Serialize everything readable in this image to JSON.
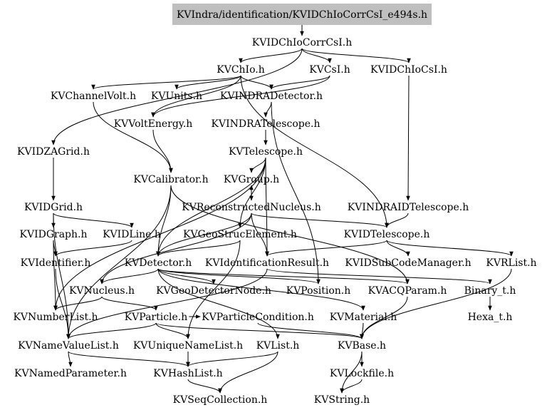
{
  "root": "KVIndra/identification/KVIDChIoCorrCsI_e494s.h",
  "nodes": [
    {
      "id": "root",
      "label": "KVIndra/identification/KVIDChIoCorrCsI_e494s.h"
    },
    {
      "id": "KVIDChIoCorrCsI",
      "label": "KVIDChIoCorrCsI.h"
    },
    {
      "id": "KVChIo",
      "label": "KVChIo.h"
    },
    {
      "id": "KVCsI",
      "label": "KVCsI.h"
    },
    {
      "id": "KVIDChIoCsI",
      "label": "KVIDChIoCsI.h"
    },
    {
      "id": "KVChannelVolt",
      "label": "KVChannelVolt.h"
    },
    {
      "id": "KVUnits",
      "label": "KVUnits.h"
    },
    {
      "id": "KVINDRADetector",
      "label": "KVINDRADetector.h"
    },
    {
      "id": "KVVoltEnergy",
      "label": "KVVoltEnergy.h"
    },
    {
      "id": "KVINDRATelescope",
      "label": "KVINDRATelescope.h"
    },
    {
      "id": "KVIDZAGrid",
      "label": "KVIDZAGrid.h"
    },
    {
      "id": "KVTelescope",
      "label": "KVTelescope.h"
    },
    {
      "id": "KVCalibrator",
      "label": "KVCalibrator.h"
    },
    {
      "id": "KVGroup",
      "label": "KVGroup.h"
    },
    {
      "id": "KVIDGrid",
      "label": "KVIDGrid.h"
    },
    {
      "id": "KVReconstructedNucleus",
      "label": "KVReconstructedNucleus.h"
    },
    {
      "id": "KVINDRAIDTelescope",
      "label": "KVINDRAIDTelescope.h"
    },
    {
      "id": "KVIDGraph",
      "label": "KVIDGraph.h"
    },
    {
      "id": "KVIDLine",
      "label": "KVIDLine.h"
    },
    {
      "id": "KVGeoStrucElement",
      "label": "KVGeoStrucElement.h"
    },
    {
      "id": "KVIDTelescope",
      "label": "KVIDTelescope.h"
    },
    {
      "id": "KVIdentifier",
      "label": "KVIdentifier.h"
    },
    {
      "id": "KVDetector",
      "label": "KVDetector.h"
    },
    {
      "id": "KVIdentificationResult",
      "label": "KVIdentificationResult.h"
    },
    {
      "id": "KVIDSubCodeManager",
      "label": "KVIDSubCodeManager.h"
    },
    {
      "id": "KVRList",
      "label": "KVRList.h"
    },
    {
      "id": "KVNucleus",
      "label": "KVNucleus.h"
    },
    {
      "id": "KVGeoDetectorNode",
      "label": "KVGeoDetectorNode.h"
    },
    {
      "id": "KVPosition",
      "label": "KVPosition.h"
    },
    {
      "id": "KVACQParam",
      "label": "KVACQParam.h"
    },
    {
      "id": "Binary_t",
      "label": "Binary_t.h"
    },
    {
      "id": "KVNumberList",
      "label": "KVNumberList.h"
    },
    {
      "id": "KVParticle",
      "label": "KVParticle.h"
    },
    {
      "id": "KVParticleCondition",
      "label": "KVParticleCondition.h"
    },
    {
      "id": "KVMaterial",
      "label": "KVMaterial.h"
    },
    {
      "id": "Hexa_t",
      "label": "Hexa_t.h"
    },
    {
      "id": "KVNameValueList",
      "label": "KVNameValueList.h"
    },
    {
      "id": "KVUniqueNameList",
      "label": "KVUniqueNameList.h"
    },
    {
      "id": "KVList",
      "label": "KVList.h"
    },
    {
      "id": "KVBase",
      "label": "KVBase.h"
    },
    {
      "id": "KVNamedParameter",
      "label": "KVNamedParameter.h"
    },
    {
      "id": "KVHashList",
      "label": "KVHashList.h"
    },
    {
      "id": "KVLockfile",
      "label": "KVLockfile.h"
    },
    {
      "id": "KVSeqCollection",
      "label": "KVSeqCollection.h"
    },
    {
      "id": "KVString",
      "label": "KVString.h"
    }
  ],
  "edges": [
    [
      "root",
      "KVIDChIoCorrCsI"
    ],
    [
      "KVIDChIoCorrCsI",
      "KVChIo"
    ],
    [
      "KVIDChIoCorrCsI",
      "KVCsI"
    ],
    [
      "KVIDChIoCorrCsI",
      "KVIDChIoCsI"
    ],
    [
      "KVIDChIoCorrCsI",
      "KVIDZAGrid"
    ],
    [
      "KVChIo",
      "KVChannelVolt"
    ],
    [
      "KVChIo",
      "KVUnits"
    ],
    [
      "KVChIo",
      "KVINDRADetector"
    ],
    [
      "KVChIo",
      "KVVoltEnergy"
    ],
    [
      "KVChIo",
      "KVIDTelescope"
    ],
    [
      "KVCsI",
      "KVINDRADetector"
    ],
    [
      "KVCsI",
      "KVVoltEnergy"
    ],
    [
      "KVIDChIoCsI",
      "KVINDRAIDTelescope"
    ],
    [
      "KVINDRADetector",
      "KVINDRATelescope"
    ],
    [
      "KVINDRADetector",
      "KVPosition"
    ],
    [
      "KVINDRATelescope",
      "KVTelescope"
    ],
    [
      "KVChannelVolt",
      "KVCalibrator"
    ],
    [
      "KVVoltEnergy",
      "KVCalibrator"
    ],
    [
      "KVTelescope",
      "KVGroup"
    ],
    [
      "KVTelescope",
      "KVNumberList"
    ],
    [
      "KVTelescope",
      "KVGeoStrucElement"
    ],
    [
      "KVTelescope",
      "KVIdentificationResult"
    ],
    [
      "KVTelescope",
      "KVDetector"
    ],
    [
      "KVIDZAGrid",
      "KVIDGrid"
    ],
    [
      "KVIDGrid",
      "KVIDGraph"
    ],
    [
      "KVIDGrid",
      "KVIDLine"
    ],
    [
      "KVIDGrid",
      "KVNameValueList"
    ],
    [
      "KVIDGraph",
      "KVIdentifier"
    ],
    [
      "KVIDGraph",
      "KVNumberList"
    ],
    [
      "KVIDLine",
      "KVIdentifier"
    ],
    [
      "KVIdentifier",
      "KVNameValueList"
    ],
    [
      "KVCalibrator",
      "KVACQParam"
    ],
    [
      "KVCalibrator",
      "KVNameValueList"
    ],
    [
      "KVCalibrator",
      "KVDetector"
    ],
    [
      "KVGroup",
      "KVReconstructedNucleus"
    ],
    [
      "KVReconstructedNucleus",
      "KVGroup"
    ],
    [
      "KVReconstructedNucleus",
      "KVIDTelescope"
    ],
    [
      "KVReconstructedNucleus",
      "KVNucleus"
    ],
    [
      "KVReconstructedNucleus",
      "KVIdentificationResult"
    ],
    [
      "KVReconstructedNucleus",
      "KVDetector"
    ],
    [
      "KVGeoStrucElement",
      "KVDetector"
    ],
    [
      "KVGeoStrucElement",
      "KVUniqueNameList"
    ],
    [
      "KVIDTelescope",
      "KVIDSubCodeManager"
    ],
    [
      "KVIDTelescope",
      "KVRList"
    ],
    [
      "KVIDTelescope",
      "KVIdentificationResult"
    ],
    [
      "KVINDRAIDTelescope",
      "KVIDTelescope"
    ],
    [
      "KVDetector",
      "KVNucleus"
    ],
    [
      "KVDetector",
      "KVGeoDetectorNode"
    ],
    [
      "KVDetector",
      "KVPosition"
    ],
    [
      "KVDetector",
      "KVACQParam"
    ],
    [
      "KVDetector",
      "KVMaterial"
    ],
    [
      "KVDetector",
      "KVList"
    ],
    [
      "KVIdentificationResult",
      "KVNameValueList"
    ],
    [
      "KVIdentificationResult",
      "Binary_t"
    ],
    [
      "KVNucleus",
      "KVNumberList"
    ],
    [
      "KVNucleus",
      "KVParticle"
    ],
    [
      "KVParticle",
      "KVParticleCondition"
    ],
    [
      "KVParticle",
      "KVUniqueNameList"
    ],
    [
      "KVParticle",
      "KVBase"
    ],
    [
      "KVParticle",
      "KVNameValueList"
    ],
    [
      "KVParticleCondition",
      "KVBase"
    ],
    [
      "KVMaterial",
      "KVBase"
    ],
    [
      "KVACQParam",
      "KVBase"
    ],
    [
      "Binary_t",
      "Hexa_t"
    ],
    [
      "KVRList",
      "KVBase"
    ],
    [
      "KVNameValueList",
      "KVNamedParameter"
    ],
    [
      "KVNameValueList",
      "KVHashList"
    ],
    [
      "KVUniqueNameList",
      "KVHashList"
    ],
    [
      "KVList",
      "KVHashList"
    ],
    [
      "KVList",
      "KVSeqCollection"
    ],
    [
      "KVHashList",
      "KVSeqCollection"
    ],
    [
      "KVBase",
      "KVLockfile"
    ],
    [
      "KVBase",
      "KVString"
    ],
    [
      "KVLockfile",
      "KVString"
    ]
  ],
  "colors": {
    "root_fill": "#bfbfbf",
    "edge": "#000000",
    "text": "#000000"
  }
}
